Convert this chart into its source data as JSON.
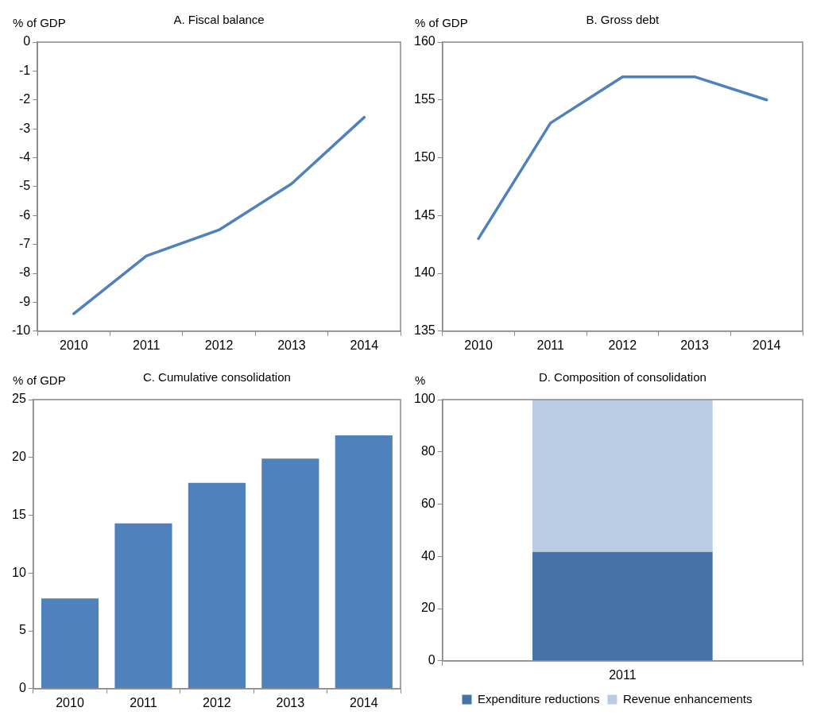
{
  "chart_data": [
    {
      "type": "line",
      "title": "A. Fiscal balance",
      "ylabel": "% of GDP",
      "categories": [
        "2010",
        "2011",
        "2012",
        "2013",
        "2014"
      ],
      "series": [
        {
          "color": "#4f81bd",
          "values": [
            -9.4,
            -7.4,
            -6.5,
            -4.9,
            -2.6
          ]
        }
      ],
      "ylim": [
        -10,
        0
      ],
      "yticks": [
        -10,
        -9,
        -8,
        -7,
        -6,
        -5,
        -4,
        -3,
        -2,
        -1,
        0
      ],
      "grid": false,
      "legend": false,
      "marker": "none"
    },
    {
      "type": "line",
      "title": "B. Gross debt",
      "ylabel": "% of GDP",
      "categories": [
        "2010",
        "2011",
        "2012",
        "2013",
        "2014"
      ],
      "series": [
        {
          "color": "#4f81bd",
          "values": [
            143,
            153,
            157,
            157,
            155
          ]
        }
      ],
      "ylim": [
        135,
        160
      ],
      "yticks": [
        135,
        140,
        145,
        150,
        155,
        160
      ],
      "grid": false,
      "legend": false,
      "marker": "none"
    },
    {
      "type": "bar",
      "title": "C. Cumulative consolidation",
      "ylabel": "% of GDP",
      "categories": [
        "2010",
        "2011",
        "2012",
        "2013",
        "2014"
      ],
      "series": [
        {
          "color": "#4f81bd",
          "values": [
            7.8,
            14.3,
            17.8,
            19.9,
            21.9
          ]
        }
      ],
      "ylim": [
        0,
        25
      ],
      "yticks": [
        0,
        5,
        10,
        15,
        20,
        25
      ],
      "grid": false,
      "legend": false
    },
    {
      "type": "bar",
      "title": "D. Composition of consolidation",
      "ylabel": "%",
      "categories": [
        "2011"
      ],
      "stacked": true,
      "series": [
        {
          "name": "Expenditure reductions",
          "color": "#4573a7",
          "values": [
            41.7
          ]
        },
        {
          "name": "Revenue enhancements",
          "color": "#b9cce4",
          "values": [
            58.3
          ]
        }
      ],
      "ylim": [
        0,
        100
      ],
      "yticks": [
        0,
        20,
        40,
        60,
        80,
        100
      ],
      "grid": false,
      "legend": "bottom"
    }
  ]
}
